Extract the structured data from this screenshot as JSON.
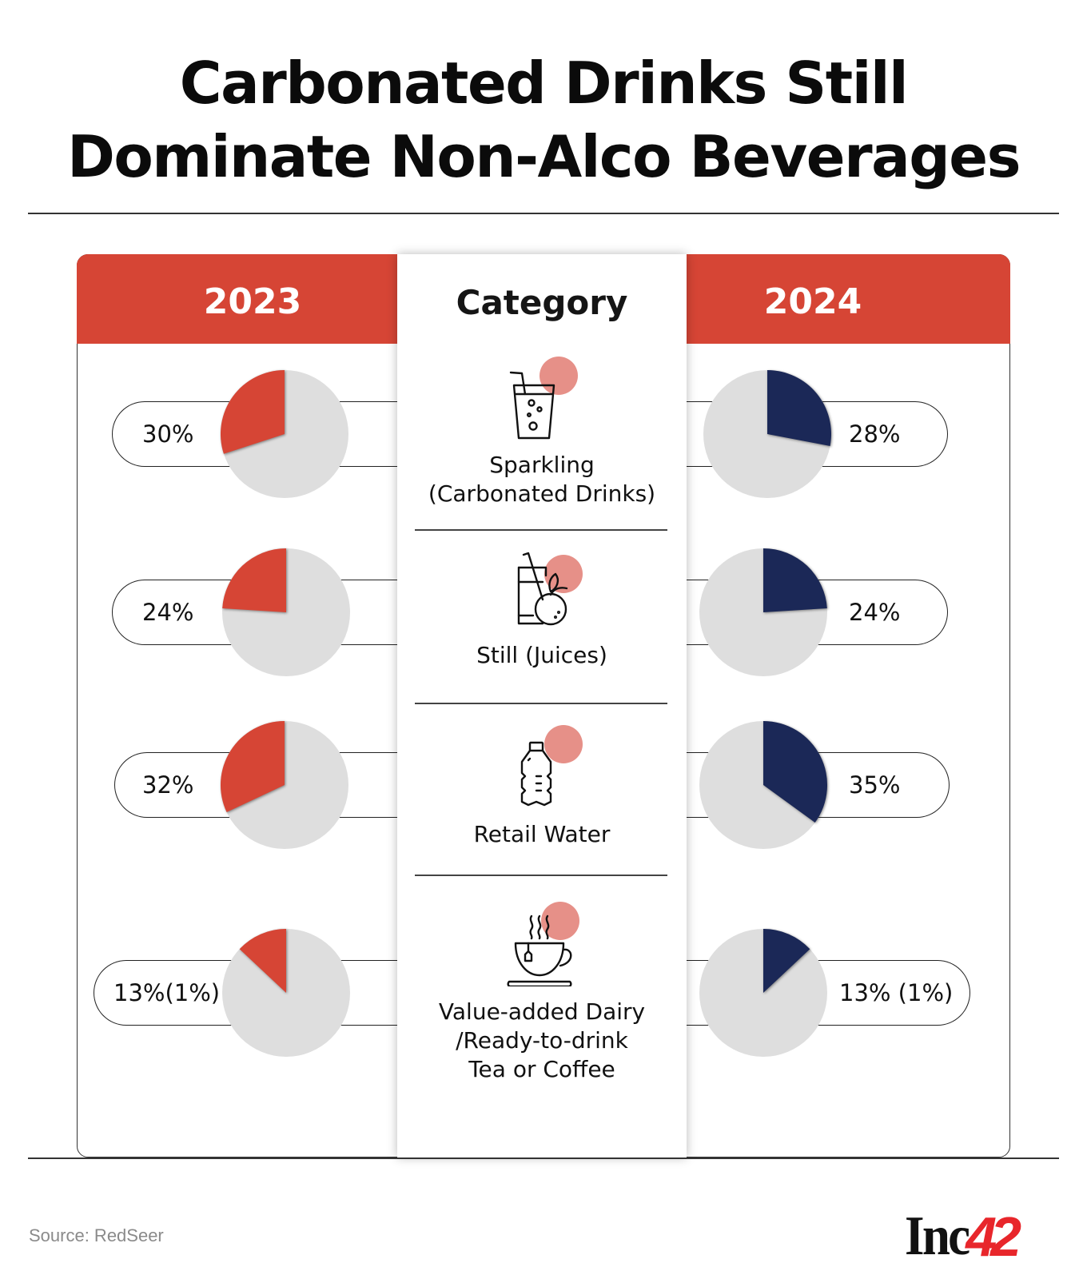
{
  "title": {
    "line1": "Carbonated Drinks Still",
    "line2": "Dominate Non-Alco Beverages"
  },
  "colors": {
    "accent_red": "#d64535",
    "navy": "#1b2857",
    "pie_bg": "#dedede",
    "icon_dot": "#e69088"
  },
  "table": {
    "left_header": "2023",
    "center_header": "Category",
    "right_header": "2024"
  },
  "categories": [
    {
      "label_lines": [
        "Sparkling",
        "(Carbonated Drinks)"
      ],
      "icon": "soda-glass-icon"
    },
    {
      "label_lines": [
        "Still (Juices)"
      ],
      "icon": "juice-glass-orange-icon"
    },
    {
      "label_lines": [
        "Retail Water"
      ],
      "icon": "water-bottle-icon"
    },
    {
      "label_lines": [
        "Value-added Dairy",
        "/Ready-to-drink",
        "Tea or Coffee"
      ],
      "icon": "tea-cup-icon"
    }
  ],
  "chart_data": {
    "type": "pie",
    "title": "Carbonated Drinks Still Dominate Non-Alco Beverages",
    "categories": [
      "Sparkling (Carbonated Drinks)",
      "Still (Juices)",
      "Retail Water",
      "Value-added Dairy/Ready-to-drink Tea or Coffee"
    ],
    "series": [
      {
        "name": "2023",
        "values": [
          30,
          24,
          32,
          13
        ],
        "labels": [
          "30%",
          "24%",
          "32%",
          "13%(1%)"
        ],
        "color": "#d64535"
      },
      {
        "name": "2024",
        "values": [
          28,
          24,
          35,
          13
        ],
        "labels": [
          "28%",
          "24%",
          "35%",
          "13% (1%)"
        ],
        "color": "#1b2857"
      }
    ],
    "unit": "% share"
  },
  "footer": {
    "source": "Source: RedSeer",
    "logo_text": "Inc",
    "logo_num": "42"
  }
}
